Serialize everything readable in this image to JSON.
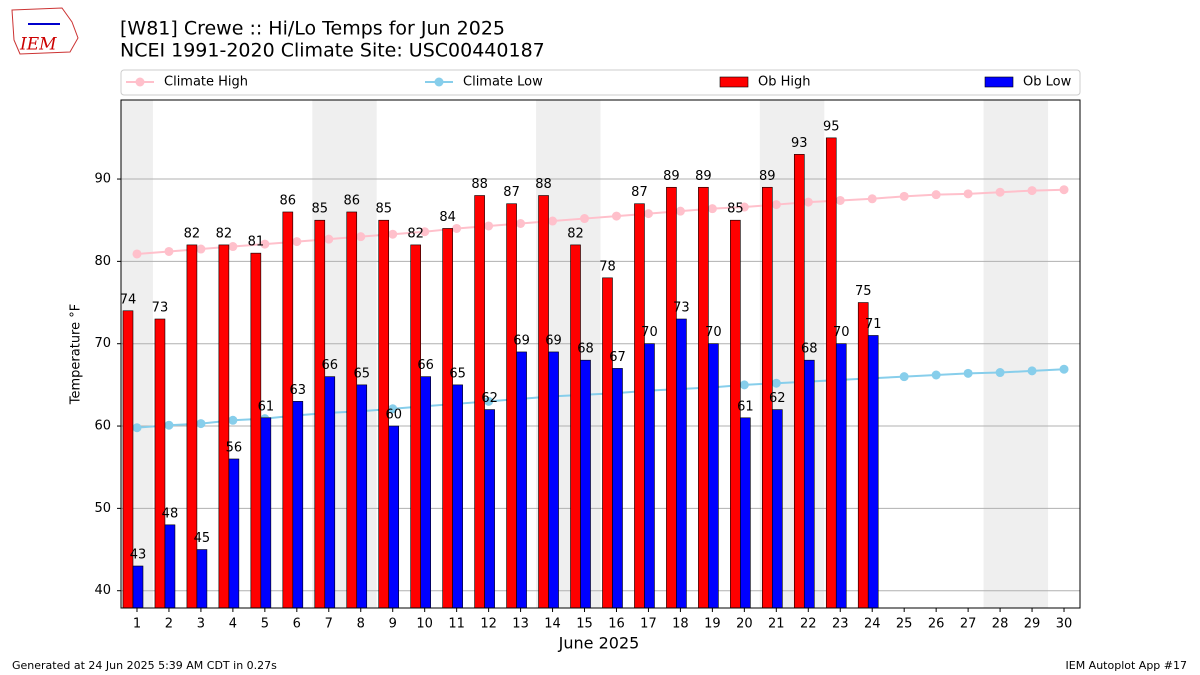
{
  "chart_data": {
    "type": "bar",
    "title": "[W81] Crewe :: Hi/Lo Temps for Jun 2025",
    "subtitle": "NCEI 1991-2020 Climate Site: USC00440187",
    "x_label": "June 2025",
    "y_label": "Temperature °F",
    "categories": [
      "1",
      "2",
      "3",
      "4",
      "5",
      "6",
      "7",
      "8",
      "9",
      "10",
      "11",
      "12",
      "13",
      "14",
      "15",
      "16",
      "17",
      "18",
      "19",
      "20",
      "21",
      "22",
      "23",
      "24",
      "25",
      "26",
      "27",
      "28",
      "29",
      "30"
    ],
    "series": [
      {
        "name": "Climate High",
        "type": "line",
        "color": "#ffc0cb",
        "values": [
          80.9,
          81.2,
          81.5,
          81.8,
          82.1,
          82.4,
          82.7,
          83.0,
          83.3,
          83.6,
          84.0,
          84.3,
          84.6,
          84.9,
          85.2,
          85.5,
          85.8,
          86.1,
          86.4,
          86.6,
          86.9,
          87.2,
          87.4,
          87.6,
          87.9,
          88.1,
          88.2,
          88.4,
          88.6,
          88.7
        ]
      },
      {
        "name": "Climate Low",
        "type": "line",
        "color": "#87ceeb",
        "values": [
          59.8,
          60.1,
          60.3,
          60.7,
          60.9,
          61.3,
          61.6,
          61.8,
          62.1,
          62.4,
          62.7,
          63.0,
          63.3,
          63.6,
          63.8,
          64.0,
          64.3,
          64.5,
          64.7,
          65.0,
          65.2,
          65.4,
          65.6,
          65.8,
          66.0,
          66.2,
          66.4,
          66.5,
          66.7,
          66.9
        ]
      },
      {
        "name": "Ob High",
        "type": "bar",
        "color": "#ff0000",
        "values": [
          74,
          73,
          82,
          82,
          81,
          86,
          85,
          86,
          85,
          82,
          84,
          88,
          87,
          88,
          82,
          78,
          87,
          89,
          89,
          85,
          89,
          93,
          95,
          75,
          null,
          null,
          null,
          null,
          null,
          null
        ]
      },
      {
        "name": "Ob Low",
        "type": "bar",
        "color": "#0000ff",
        "values": [
          43,
          48,
          45,
          56,
          61,
          63,
          66,
          65,
          60,
          66,
          65,
          62,
          69,
          69,
          68,
          67,
          70,
          73,
          70,
          61,
          62,
          68,
          70,
          71,
          null,
          null,
          null,
          null,
          null,
          null
        ]
      }
    ],
    "shaded_days": [
      1,
      7,
      8,
      14,
      15,
      21,
      22,
      28,
      29
    ],
    "ylim": [
      37.9,
      99.6
    ],
    "yticks": [
      40,
      50,
      60,
      70,
      80,
      90
    ],
    "grid": true,
    "legend": "top"
  },
  "logo": "IEM",
  "footer": {
    "left": "Generated at 24 Jun 2025 5:39 AM CDT in 0.27s",
    "right": "IEM Autoplot App #17"
  }
}
